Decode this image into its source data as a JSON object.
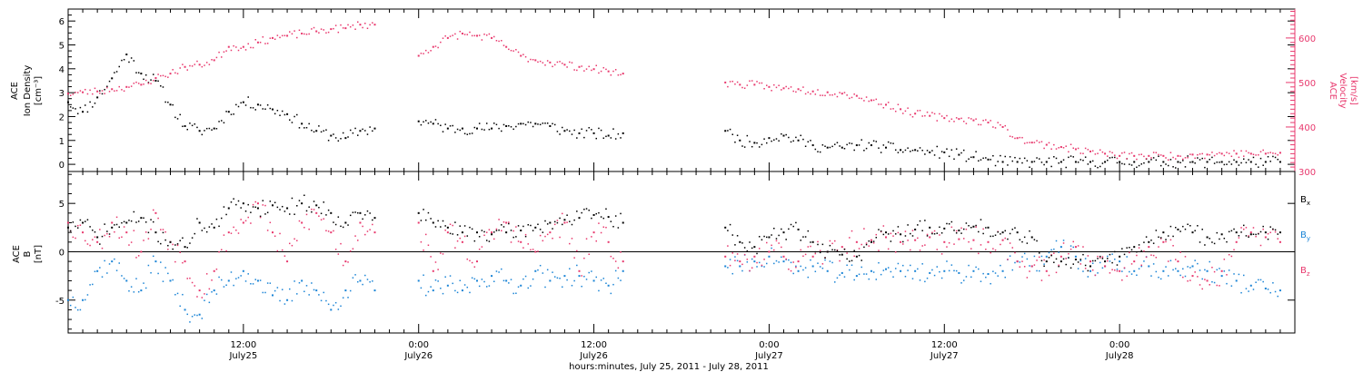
{
  "chart_data": [
    {
      "type": "scatter",
      "panel": "top",
      "ylabel_left": [
        "ACE",
        "Ion Density",
        "[cm⁻³]"
      ],
      "ylabel_right": [
        "ACE",
        "Velocity",
        "[km/s]"
      ],
      "left_axis": {
        "ylim": [
          -0.3,
          6.5
        ],
        "ticks": [
          "0",
          "1",
          "2",
          "3",
          "4",
          "5",
          "6"
        ]
      },
      "right_axis": {
        "ylim": [
          300,
          665
        ],
        "ticks": [
          "300",
          "400",
          "500",
          "600"
        ],
        "color": "#e8386d"
      },
      "series": [
        {
          "color": "#000000",
          "axis": "left",
          "x_hours": [
            0,
            1,
            2,
            3,
            4,
            5,
            6,
            7,
            8,
            9,
            10,
            11,
            12,
            13,
            14,
            15,
            16,
            17,
            18,
            19,
            20,
            21,
            22,
            23,
            24,
            25,
            26,
            27,
            28,
            29,
            30,
            31,
            32,
            33,
            34,
            35,
            36,
            37,
            38,
            39,
            40,
            41,
            42,
            43,
            44,
            45,
            46,
            47,
            48,
            49,
            50,
            51,
            52,
            53,
            54,
            55,
            56,
            57,
            58,
            59,
            60,
            61,
            62,
            63,
            64,
            65,
            66,
            67,
            68,
            69,
            70,
            71,
            72,
            73,
            74,
            75,
            76,
            77,
            78,
            79,
            80,
            81,
            82,
            83
          ],
          "y": [
            2.6,
            2.2,
            2.8,
            3.6,
            4.6,
            3.8,
            3.5,
            2.5,
            1.6,
            1.4,
            1.5,
            2.2,
            2.6,
            2.5,
            2.3,
            2.1,
            1.7,
            1.4,
            1.2,
            1.1,
            1.4,
            1.5,
            null,
            null,
            1.8,
            1.7,
            1.5,
            1.5,
            1.5,
            1.5,
            1.6,
            1.7,
            1.7,
            1.6,
            1.4,
            1.3,
            1.3,
            1.2,
            1.3,
            null,
            null,
            null,
            null,
            null,
            null,
            1.4,
            1.0,
            0.9,
            1.1,
            1.2,
            1.0,
            0.8,
            0.7,
            0.7,
            0.8,
            0.8,
            0.7,
            0.6,
            0.6,
            0.5,
            0.5,
            0.4,
            0.3,
            0.2,
            0.1,
            0.1,
            0.1,
            0.1,
            0.1,
            0.1,
            0.1,
            0.1,
            0.1,
            0.1,
            0.1,
            0.1,
            0.1,
            0.1,
            0.1,
            0.1,
            0.1,
            0.1,
            0.1,
            0.1
          ]
        },
        {
          "color": "#e8386d",
          "axis": "right",
          "x_hours": [
            0,
            1,
            2,
            3,
            4,
            5,
            6,
            7,
            8,
            9,
            10,
            11,
            12,
            13,
            14,
            15,
            16,
            17,
            18,
            19,
            20,
            21,
            22,
            23,
            24,
            25,
            26,
            27,
            28,
            29,
            30,
            31,
            32,
            33,
            34,
            35,
            36,
            37,
            38,
            39,
            40,
            41,
            42,
            43,
            44,
            45,
            46,
            47,
            48,
            49,
            50,
            51,
            52,
            53,
            54,
            55,
            56,
            57,
            58,
            59,
            60,
            61,
            62,
            63,
            64,
            65,
            66,
            67,
            68,
            69,
            70,
            71,
            72,
            73,
            74,
            75,
            76,
            77,
            78,
            79,
            80,
            81,
            82,
            83
          ],
          "y": [
            475,
            478,
            480,
            485,
            490,
            495,
            510,
            520,
            535,
            540,
            550,
            580,
            580,
            590,
            600,
            605,
            610,
            615,
            620,
            622,
            630,
            630,
            null,
            null,
            560,
            580,
            600,
            610,
            605,
            600,
            580,
            560,
            550,
            545,
            540,
            535,
            530,
            525,
            520,
            null,
            null,
            null,
            null,
            null,
            null,
            500,
            495,
            495,
            490,
            487,
            485,
            480,
            478,
            475,
            470,
            460,
            450,
            440,
            430,
            425,
            420,
            418,
            415,
            410,
            400,
            375,
            365,
            360,
            355,
            350,
            345,
            340,
            335,
            335,
            335,
            335,
            335,
            338,
            338,
            340,
            340,
            340,
            340,
            342
          ]
        }
      ]
    },
    {
      "type": "scatter",
      "panel": "bottom",
      "ylabel": [
        "ACE",
        "B",
        "[nT]"
      ],
      "ylim": [
        -8.4,
        8.3
      ],
      "yticks": [
        "-5",
        "0",
        "5"
      ],
      "zero_line": true,
      "series": [
        {
          "name": "B",
          "name_sub": "x",
          "color": "#000000",
          "x_hours": [
            0,
            1,
            2,
            3,
            4,
            5,
            6,
            7,
            8,
            9,
            10,
            11,
            12,
            13,
            14,
            15,
            16,
            17,
            18,
            19,
            20,
            21,
            22,
            23,
            24,
            25,
            26,
            27,
            28,
            29,
            30,
            31,
            32,
            33,
            34,
            35,
            36,
            37,
            38,
            39,
            40,
            41,
            42,
            43,
            44,
            45,
            46,
            47,
            48,
            49,
            50,
            51,
            52,
            53,
            54,
            55,
            56,
            57,
            58,
            59,
            60,
            61,
            62,
            63,
            64,
            65,
            66,
            67,
            68,
            69,
            70,
            71,
            72,
            73,
            74,
            75,
            76,
            77,
            78,
            79,
            80,
            81,
            82,
            83
          ],
          "y": [
            2.5,
            3,
            1.5,
            2.5,
            3,
            3.5,
            2,
            1,
            0.5,
            3,
            2.5,
            4.5,
            5,
            4.5,
            4.8,
            4.5,
            5,
            4.8,
            4,
            3,
            4,
            3.5,
            null,
            null,
            4,
            3,
            2.5,
            2,
            2,
            1.8,
            2,
            2.2,
            2.5,
            3,
            3.3,
            3.5,
            3.8,
            3.6,
            3,
            null,
            null,
            null,
            null,
            null,
            null,
            2.5,
            1,
            0.5,
            1.5,
            2,
            2.3,
            1,
            0,
            -0.3,
            -0.5,
            1,
            2,
            1.8,
            2.3,
            2.5,
            2.4,
            2.2,
            2.6,
            2.5,
            2,
            2,
            1.5,
            -1,
            -1,
            -0.8,
            -1.5,
            -1,
            -0.5,
            0.5,
            1,
            2,
            2.3,
            2,
            1.5,
            1.8,
            2,
            1.8,
            2,
            2
          ]
        },
        {
          "name": "B",
          "name_sub": "y",
          "color": "#1a84d6",
          "x_hours": [
            0,
            1,
            2,
            3,
            4,
            5,
            6,
            7,
            8,
            9,
            10,
            11,
            12,
            13,
            14,
            15,
            16,
            17,
            18,
            19,
            20,
            21,
            22,
            23,
            24,
            25,
            26,
            27,
            28,
            29,
            30,
            31,
            32,
            33,
            34,
            35,
            36,
            37,
            38,
            39,
            40,
            41,
            42,
            43,
            44,
            45,
            46,
            47,
            48,
            49,
            50,
            51,
            52,
            53,
            54,
            55,
            56,
            57,
            58,
            59,
            60,
            61,
            62,
            63,
            64,
            65,
            66,
            67,
            68,
            69,
            70,
            71,
            72,
            73,
            74,
            75,
            76,
            77,
            78,
            79,
            80,
            81,
            82,
            83
          ],
          "y": [
            -5,
            -5,
            -2,
            -1,
            -3,
            -4,
            -1,
            -3,
            -6,
            -6.5,
            -4,
            -3,
            -2,
            -3,
            -4.5,
            -5,
            -3,
            -4,
            -6,
            -4,
            -3,
            -4,
            null,
            null,
            -3,
            -4,
            -3.5,
            -4,
            -3,
            -2.5,
            -3,
            -3.5,
            -2,
            -3,
            -2.5,
            -2.5,
            -3,
            -3.5,
            -2,
            null,
            null,
            null,
            null,
            null,
            null,
            -1.5,
            -1.5,
            -1,
            -0.5,
            -1,
            -2,
            -1.5,
            -2,
            -2.2,
            -2.5,
            -2,
            -1.8,
            -2,
            -2,
            -2.2,
            -2,
            -2.2,
            -2,
            -2.3,
            -2,
            -1,
            -1.5,
            -0.5,
            0.5,
            -0.5,
            -2,
            -1.5,
            -1,
            -2,
            -1.5,
            -2,
            -2,
            -1.5,
            -2,
            -2.5,
            -3,
            -3.5,
            -3.8,
            -4
          ]
        },
        {
          "name": "B",
          "name_sub": "z",
          "color": "#e8386d",
          "x_hours": [
            0,
            1,
            2,
            3,
            4,
            5,
            6,
            7,
            8,
            9,
            10,
            11,
            12,
            13,
            14,
            15,
            16,
            17,
            18,
            19,
            20,
            21,
            22,
            23,
            24,
            25,
            26,
            27,
            28,
            29,
            30,
            31,
            32,
            33,
            34,
            35,
            36,
            37,
            38,
            39,
            40,
            41,
            42,
            43,
            44,
            45,
            46,
            47,
            48,
            49,
            50,
            51,
            52,
            53,
            54,
            55,
            56,
            57,
            58,
            59,
            60,
            61,
            62,
            63,
            64,
            65,
            66,
            67,
            68,
            69,
            70,
            71,
            72,
            73,
            74,
            75,
            76,
            77,
            78,
            79,
            80,
            81,
            82,
            83
          ],
          "y": [
            3,
            2,
            1,
            3,
            2,
            0,
            4,
            1,
            -1,
            -4,
            -2,
            2,
            3,
            5,
            2,
            -1,
            3,
            4,
            2,
            -1,
            3,
            2,
            null,
            null,
            3,
            -2,
            2,
            1,
            -1,
            2,
            3,
            1,
            0,
            2,
            3,
            -2,
            2,
            1,
            -1,
            null,
            null,
            null,
            null,
            null,
            null,
            -0.5,
            -1,
            -0.5,
            0,
            -0.5,
            -1,
            -0.5,
            0,
            0.5,
            1,
            1.2,
            1.5,
            1,
            1.2,
            1.5,
            1,
            1.3,
            1.2,
            1,
            1.2,
            -1,
            -1.5,
            -2,
            -0.5,
            0.5,
            -1,
            -1.5,
            -2,
            -1,
            0.5,
            1,
            -1,
            -2.5,
            -3,
            -2,
            1,
            2,
            1.5,
            1
          ]
        }
      ]
    },
    {
      "type": "time_axis",
      "x_range_hours": [
        0,
        84
      ],
      "tick_hours": [
        12,
        24,
        36,
        48,
        60,
        72
      ],
      "tick_labels": [
        [
          "12:00",
          "July25"
        ],
        [
          "0:00",
          "July26"
        ],
        [
          "12:00",
          "July26"
        ],
        [
          "0:00",
          "July27"
        ],
        [
          "12:00",
          "July27"
        ],
        [
          "0:00",
          "July28"
        ]
      ],
      "xlabel": "hours:minutes, July 25, 2011 - July 28, 2011"
    }
  ]
}
